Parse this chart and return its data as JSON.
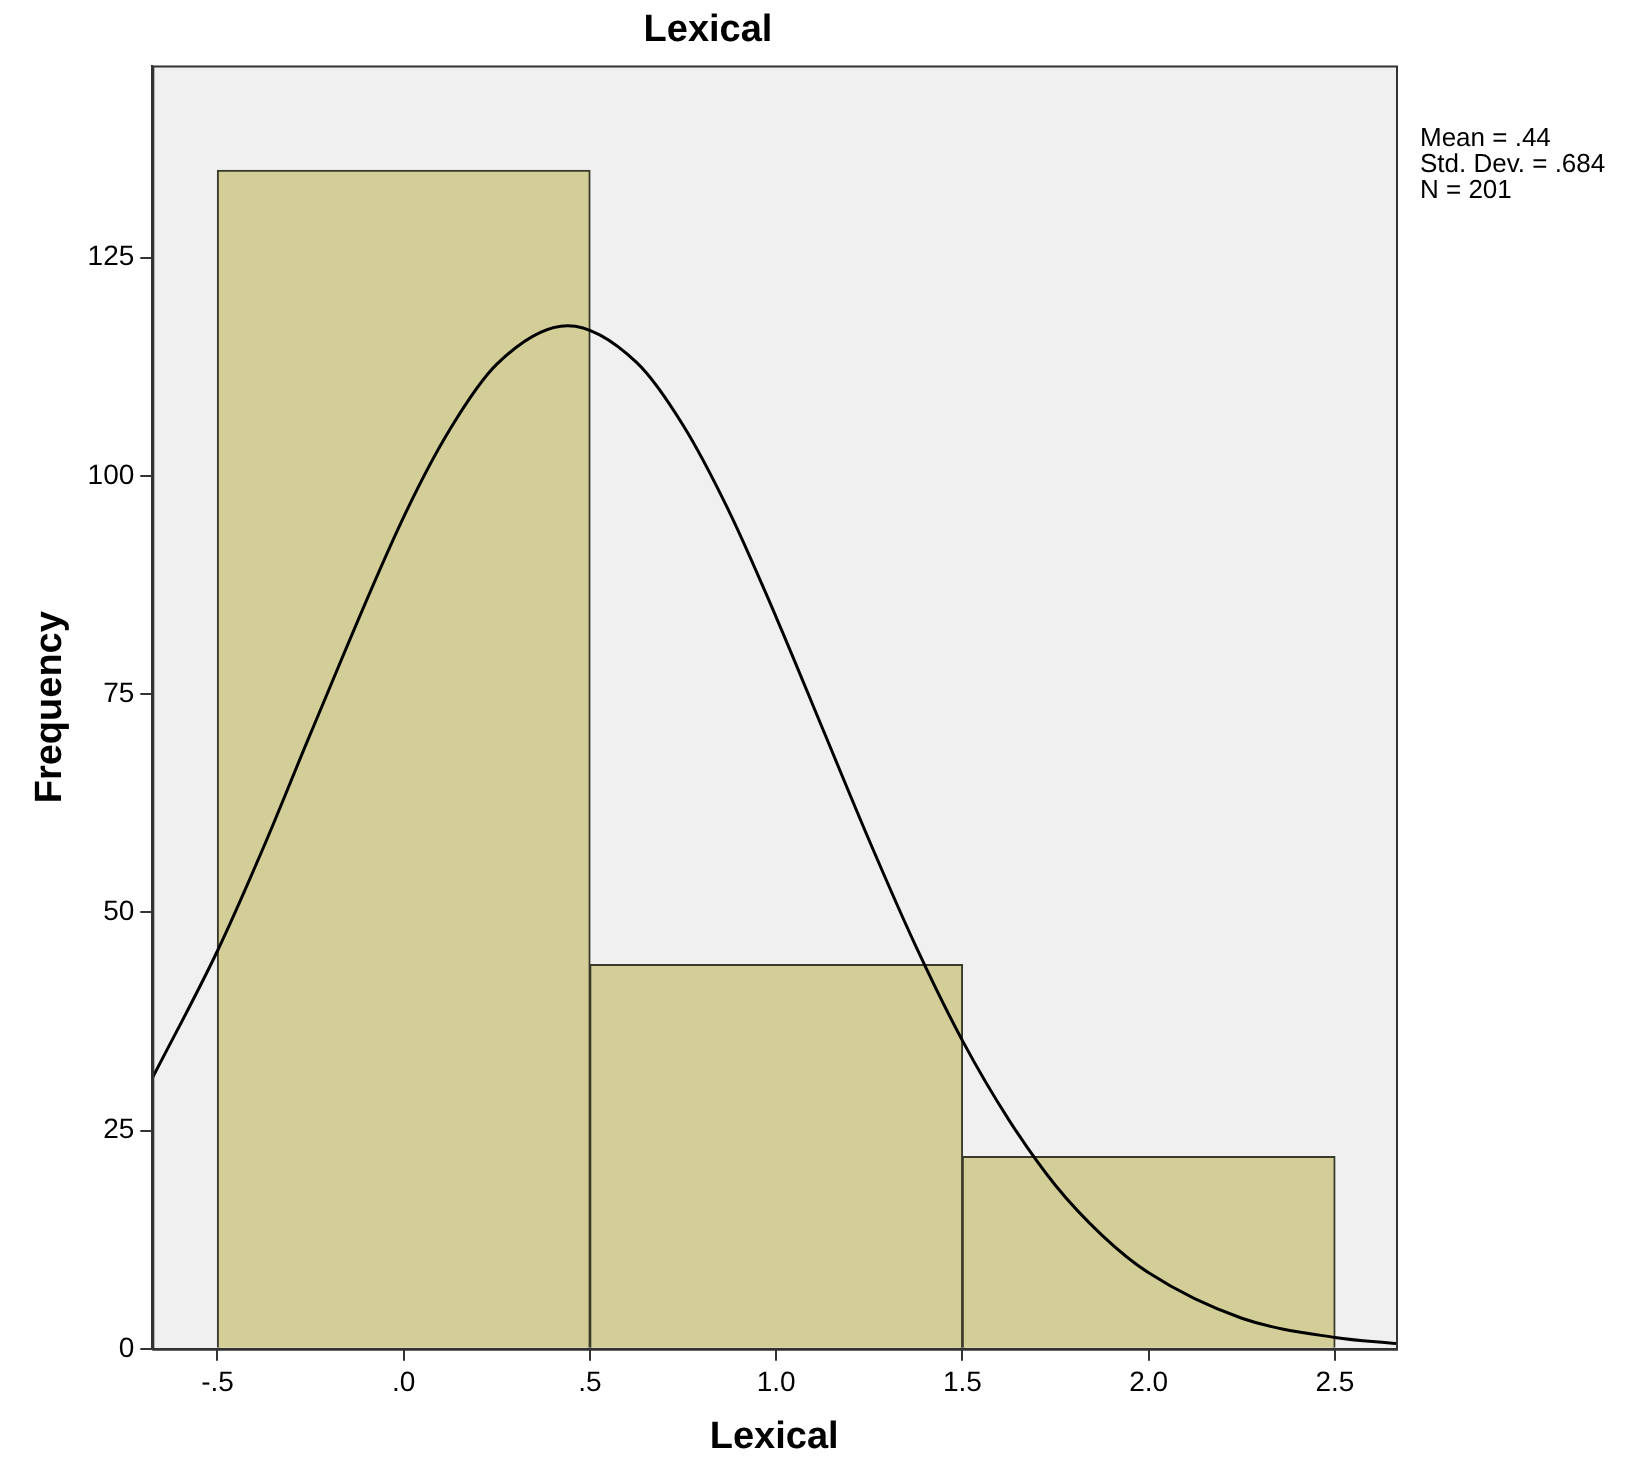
{
  "chart_data": {
    "type": "histogram",
    "title": "Lexical",
    "xlabel": "Lexical",
    "ylabel": "Frequency",
    "bins": [
      -0.5,
      0.5,
      1.5,
      2.5
    ],
    "values": [
      135,
      44,
      22
    ],
    "color": "#d3ce97",
    "series": [
      {
        "type": "line",
        "color": "#000000",
        "x": [
          -0.675,
          -0.5,
          -0.375,
          -0.25,
          0,
          0.125,
          0.25,
          0.44,
          0.625,
          0.75,
          0.875,
          1.0,
          1.125,
          1.25,
          1.375,
          1.5,
          1.625,
          1.75,
          1.875,
          2.0,
          2.25,
          2.5,
          2.664
        ],
        "values": [
          31.0,
          45.6,
          57.6,
          70.5,
          95.3,
          105.4,
          112.8,
          117.2,
          113.0,
          105.8,
          95.8,
          83.8,
          71.0,
          58.2,
          46.1,
          35.3,
          26.2,
          18.7,
          13.0,
          8.7,
          3.5,
          1.3,
          0.6
        ]
      }
    ],
    "xlim": [
      -0.675,
      2.664
    ],
    "xticks": [
      {
        "value": -0.5,
        "label": "-.5"
      },
      {
        "value": 0,
        "label": ".0"
      },
      {
        "value": 0.5,
        "label": ".5"
      },
      {
        "value": 1,
        "label": "1.0"
      },
      {
        "value": 1.5,
        "label": "1.5"
      },
      {
        "value": 2,
        "label": "2.0"
      },
      {
        "value": 2.5,
        "label": "2.5"
      }
    ],
    "ylim": [
      0,
      147
    ],
    "yticks": [
      0,
      25,
      50,
      75,
      100,
      125
    ],
    "grid": false,
    "legend": false,
    "marker": "none",
    "line_style": "solid",
    "annotations": [
      "Mean = .44",
      "Std. Dev. = .684",
      "N = 201"
    ]
  }
}
